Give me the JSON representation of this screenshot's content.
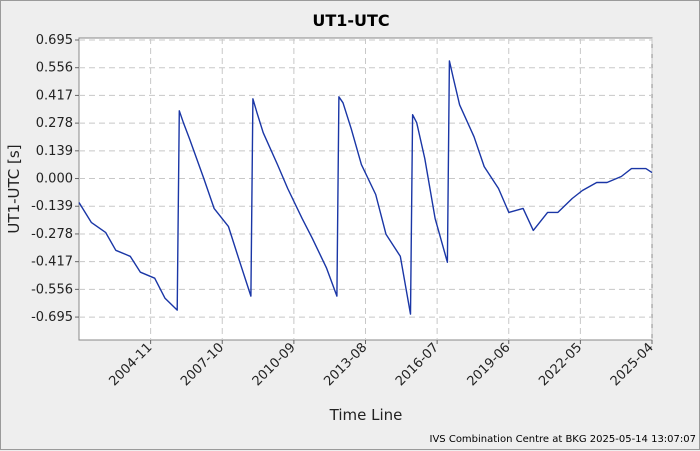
{
  "chart_data": {
    "type": "line",
    "title": "UT1-UTC",
    "xlabel": "Time Line",
    "ylabel": "UT1-UTC [s]",
    "footer": "IVS Combination Centre at BKG 2025-05-14 13:07:07",
    "x_tick_labels": [
      "2004-11",
      "2007-10",
      "2010-09",
      "2013-08",
      "2016-07",
      "2019-06",
      "2022-05",
      "2025-04"
    ],
    "y_tick_labels": [
      "0.695",
      "0.556",
      "0.417",
      "0.278",
      "0.139",
      "0.000",
      "-0.139",
      "-0.278",
      "-0.417",
      "-0.556",
      "-0.695"
    ],
    "xlim": [
      "2001-12",
      "2025-04"
    ],
    "ylim": [
      -0.81,
      0.705
    ],
    "grid": true,
    "colors": {
      "series": "#1a36a6",
      "plot_background": "#ffffff",
      "page_background": "#eeeeee"
    },
    "series": [
      {
        "x": [
          "2001-12",
          "2002-06",
          "2003-01",
          "2003-06",
          "2004-01",
          "2004-06",
          "2005-01",
          "2005-06",
          "2005-12",
          "2006-01",
          "2006-03",
          "2006-06",
          "2007-01",
          "2007-06",
          "2008-01",
          "2008-06",
          "2008-12",
          "2009-01",
          "2009-03",
          "2009-06",
          "2010-01",
          "2010-06",
          "2011-01",
          "2011-06",
          "2012-01",
          "2012-06",
          "2012-07",
          "2012-09",
          "2013-01",
          "2013-06",
          "2014-01",
          "2014-06",
          "2015-01",
          "2015-06",
          "2015-07",
          "2015-09",
          "2016-01",
          "2016-06",
          "2016-12",
          "2017-01",
          "2017-03",
          "2017-06",
          "2018-01",
          "2018-06",
          "2019-01",
          "2019-06",
          "2020-01",
          "2020-06",
          "2021-01",
          "2021-06",
          "2022-01",
          "2022-06",
          "2023-01",
          "2023-06",
          "2024-01",
          "2024-06",
          "2025-01",
          "2025-04"
        ],
        "y": [
          -0.12,
          -0.22,
          -0.27,
          -0.36,
          -0.39,
          -0.47,
          -0.5,
          -0.6,
          -0.66,
          0.34,
          0.28,
          0.2,
          0.0,
          -0.15,
          -0.24,
          -0.4,
          -0.59,
          0.4,
          0.33,
          0.23,
          0.07,
          -0.05,
          -0.2,
          -0.3,
          -0.45,
          -0.59,
          0.41,
          0.38,
          0.25,
          0.07,
          -0.08,
          -0.28,
          -0.39,
          -0.68,
          0.32,
          0.28,
          0.1,
          -0.2,
          -0.42,
          0.59,
          0.5,
          0.37,
          0.21,
          0.06,
          -0.05,
          -0.17,
          -0.15,
          -0.26,
          -0.17,
          -0.17,
          -0.1,
          -0.06,
          -0.02,
          -0.02,
          0.01,
          0.05,
          0.05,
          0.03
        ]
      }
    ]
  }
}
